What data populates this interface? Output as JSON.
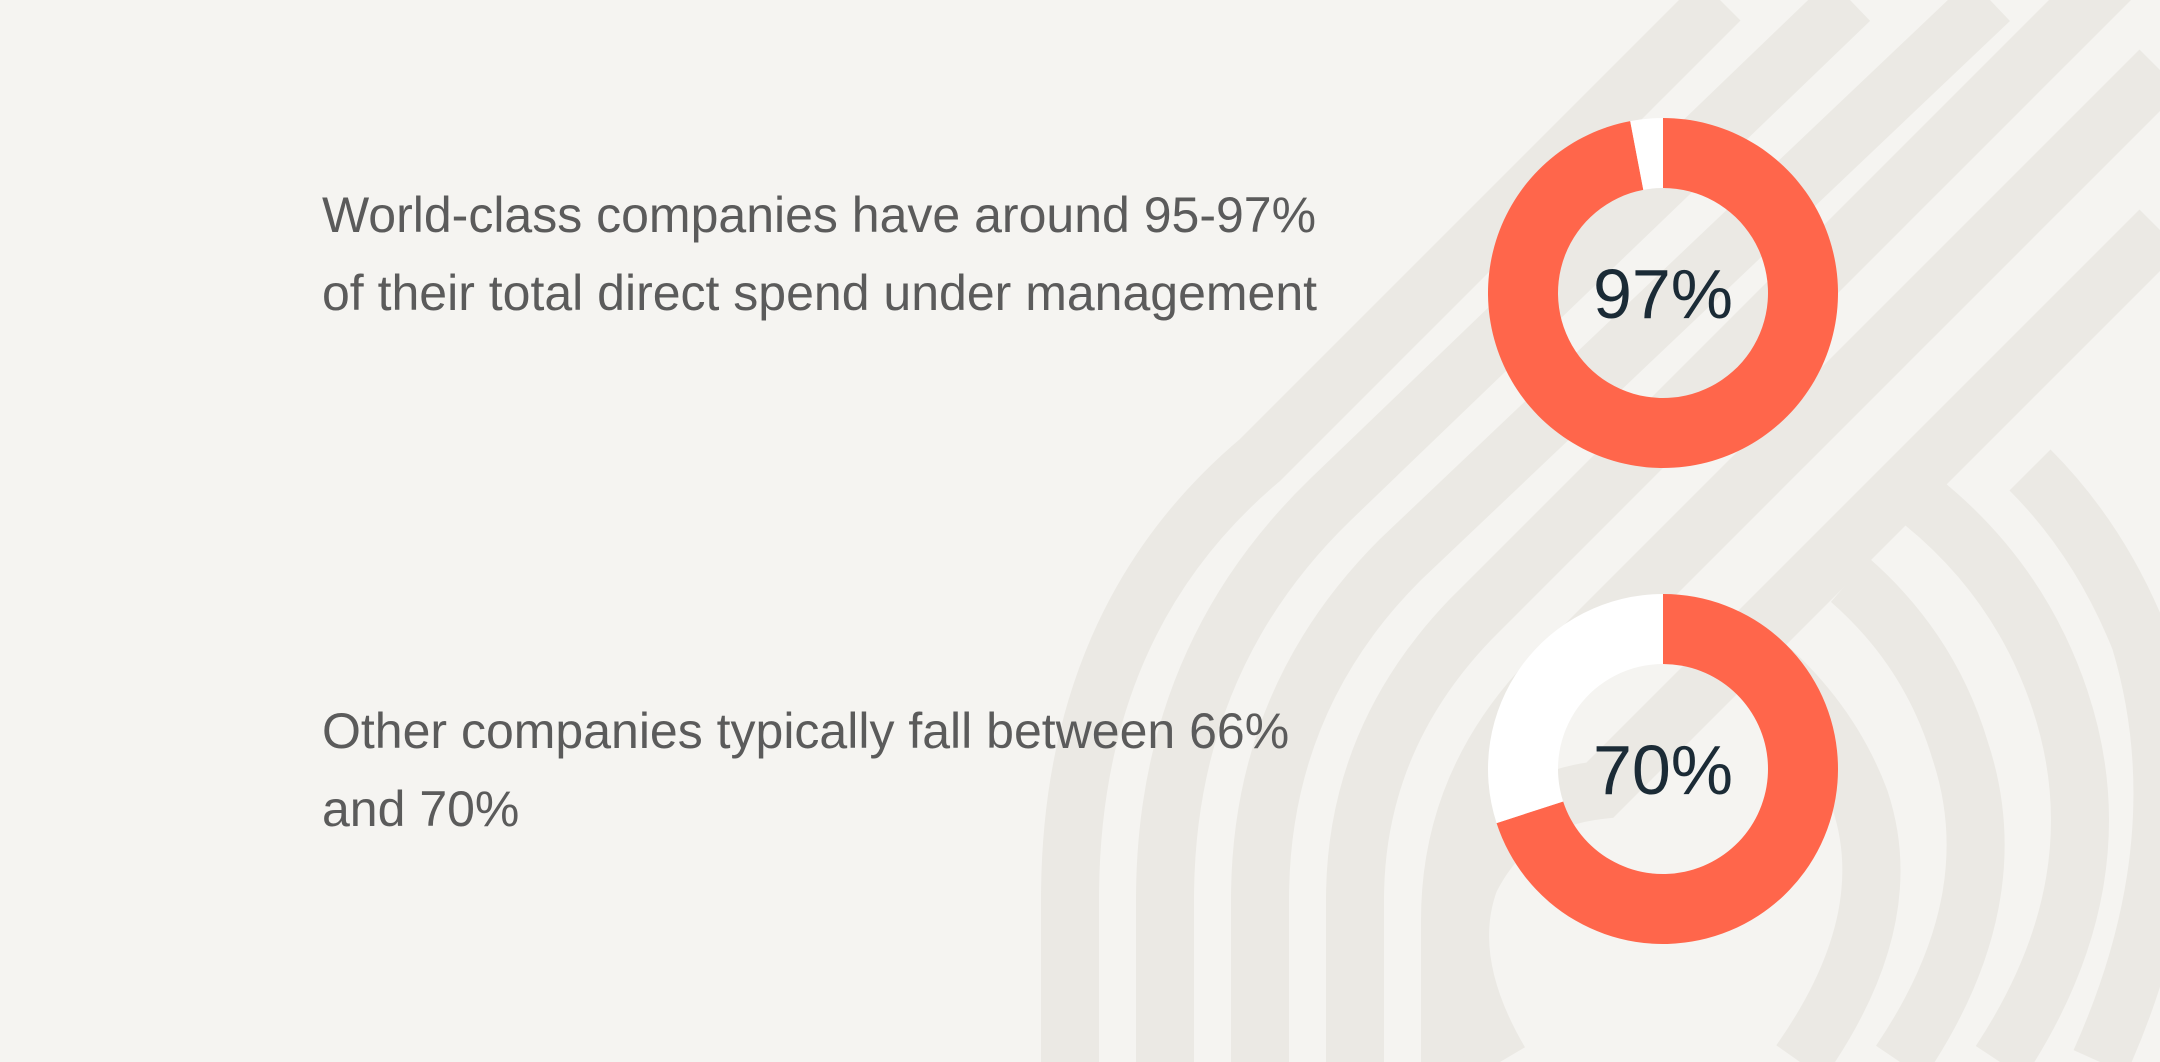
{
  "colors": {
    "background": "#f5f4f1",
    "pattern": "#ebe9e4",
    "accent": "#ff664b",
    "remainder": "#ffffff",
    "text": "#5b5b5b",
    "label": "#1b2b36"
  },
  "stats": [
    {
      "text": "World-class companies have around 95-97% of their total direct spend under management",
      "label": "97%"
    },
    {
      "text": "Other companies typically fall between 66% and 70%",
      "label": "70%"
    }
  ],
  "chart_data": [
    {
      "type": "pie",
      "donut": true,
      "values": [
        97,
        3
      ],
      "center_label": "97%"
    },
    {
      "type": "pie",
      "donut": true,
      "values": [
        70,
        30
      ],
      "center_label": "70%"
    }
  ]
}
